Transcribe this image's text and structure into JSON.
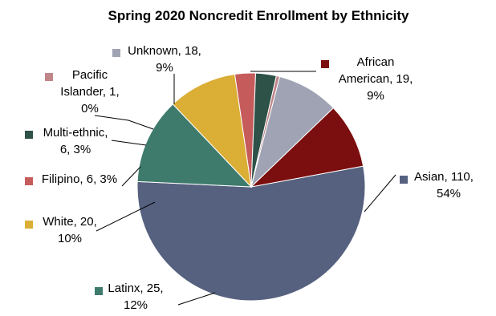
{
  "chart_data": {
    "type": "pie",
    "title": "Spring 2020 Noncredit Enrollment by Ethnicity",
    "slices": [
      {
        "name": "Asian",
        "value": 110,
        "percent": "54%",
        "color": "#56617f",
        "label_lines": [
          "Asian, 110,",
          "54%"
        ]
      },
      {
        "name": "Latinx",
        "value": 25,
        "percent": "12%",
        "color": "#3e7b6d",
        "label_lines": [
          "Latinx, 25,",
          "12%"
        ]
      },
      {
        "name": "White",
        "value": 20,
        "percent": "10%",
        "color": "#dbae35",
        "label_lines": [
          "White, 20,",
          "10%"
        ]
      },
      {
        "name": "Filipino",
        "value": 6,
        "percent": "3%",
        "color": "#c65b5b",
        "label_lines": [
          "Filipino, 6, 3%"
        ]
      },
      {
        "name": "Multi-ethnic",
        "value": 6,
        "percent": "3%",
        "color": "#2e5148",
        "label_lines": [
          "Multi-ethnic,",
          "6, 3%"
        ]
      },
      {
        "name": "Pacific Islander",
        "value": 1,
        "percent": "0%",
        "color": "#c0868a",
        "label_lines": [
          "Pacific",
          "Islander, 1,",
          "0%"
        ]
      },
      {
        "name": "Unknown",
        "value": 18,
        "percent": "9%",
        "color": "#9fa3b3",
        "label_lines": [
          "Unknown, 18,",
          "9%"
        ]
      },
      {
        "name": "African American",
        "value": 19,
        "percent": "9%",
        "color": "#7b0e0e",
        "label_lines": [
          "African",
          "American, 19,",
          "9%"
        ]
      }
    ]
  }
}
